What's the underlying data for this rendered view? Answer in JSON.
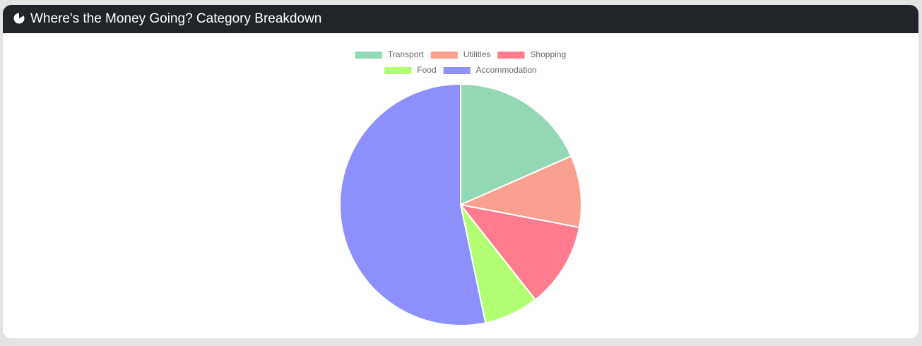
{
  "header": {
    "title": "Where's the Money Going? Category Breakdown"
  },
  "chart_data": {
    "type": "pie",
    "categories": [
      "Transport",
      "Utilities",
      "Shopping",
      "Food",
      "Accommodation"
    ],
    "values": [
      18.4,
      9.6,
      11.4,
      7.3,
      53.3
    ],
    "colors": [
      "#92d8b4",
      "#f9a08f",
      "#ff7c8f",
      "#b2ff73",
      "#8d8ffd"
    ],
    "legend": "top"
  }
}
